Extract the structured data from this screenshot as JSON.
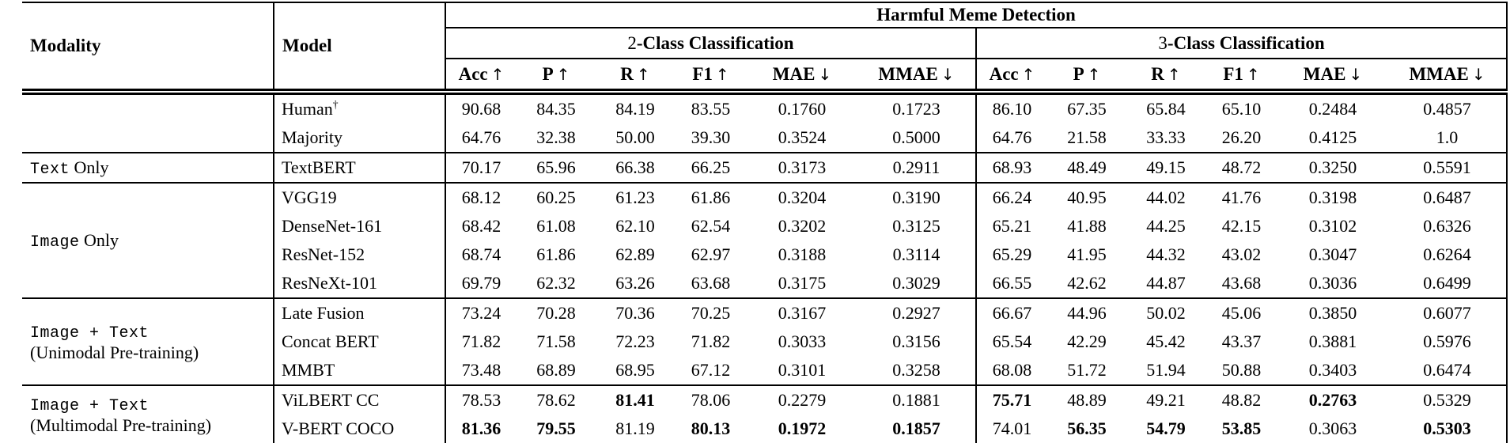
{
  "table": {
    "title": "Harmful Meme Detection",
    "col1_header": "Modality",
    "col2_header": "Model",
    "groups": [
      {
        "prefix": "2",
        "label": "-Class Classification"
      },
      {
        "prefix": "3",
        "label": "-Class Classification"
      }
    ],
    "metrics": [
      {
        "label": "Acc",
        "dir": "↑"
      },
      {
        "label": "P",
        "dir": "↑"
      },
      {
        "label": "R",
        "dir": "↑"
      },
      {
        "label": "F1",
        "dir": "↑"
      },
      {
        "label": "MAE",
        "dir": "↓"
      },
      {
        "label": "MMAE",
        "dir": "↓"
      }
    ],
    "sections": [
      {
        "modality": {
          "mono": "",
          "plain": "",
          "line2": ""
        },
        "rows": [
          {
            "model": "Human",
            "sup": "†",
            "c2": [
              "90.68",
              "84.35",
              "84.19",
              "83.55",
              "0.1760",
              "0.1723"
            ],
            "bold2": [],
            "c3": [
              "86.10",
              "67.35",
              "65.84",
              "65.10",
              "0.2484",
              "0.4857"
            ],
            "bold3": []
          },
          {
            "model": "Majority",
            "sup": "",
            "c2": [
              "64.76",
              "32.38",
              "50.00",
              "39.30",
              "0.3524",
              "0.5000"
            ],
            "bold2": [],
            "c3": [
              "64.76",
              "21.58",
              "33.33",
              "26.20",
              "0.4125",
              "1.0"
            ],
            "bold3": []
          }
        ]
      },
      {
        "modality": {
          "mono": "Text",
          "plain": " Only",
          "line2": ""
        },
        "rows": [
          {
            "model": "TextBERT",
            "sup": "",
            "c2": [
              "70.17",
              "65.96",
              "66.38",
              "66.25",
              "0.3173",
              "0.2911"
            ],
            "bold2": [],
            "c3": [
              "68.93",
              "48.49",
              "49.15",
              "48.72",
              "0.3250",
              "0.5591"
            ],
            "bold3": []
          }
        ]
      },
      {
        "modality": {
          "mono": "Image",
          "plain": " Only",
          "line2": ""
        },
        "rows": [
          {
            "model": "VGG19",
            "sup": "",
            "c2": [
              "68.12",
              "60.25",
              "61.23",
              "61.86",
              "0.3204",
              "0.3190"
            ],
            "bold2": [],
            "c3": [
              "66.24",
              "40.95",
              "44.02",
              "41.76",
              "0.3198",
              "0.6487"
            ],
            "bold3": []
          },
          {
            "model": "DenseNet-161",
            "sup": "",
            "c2": [
              "68.42",
              "61.08",
              "62.10",
              "62.54",
              "0.3202",
              "0.3125"
            ],
            "bold2": [],
            "c3": [
              "65.21",
              "41.88",
              "44.25",
              "42.15",
              "0.3102",
              "0.6326"
            ],
            "bold3": []
          },
          {
            "model": "ResNet-152",
            "sup": "",
            "c2": [
              "68.74",
              "61.86",
              "62.89",
              "62.97",
              "0.3188",
              "0.3114"
            ],
            "bold2": [],
            "c3": [
              "65.29",
              "41.95",
              "44.32",
              "43.02",
              "0.3047",
              "0.6264"
            ],
            "bold3": []
          },
          {
            "model": "ResNeXt-101",
            "sup": "",
            "c2": [
              "69.79",
              "62.32",
              "63.26",
              "63.68",
              "0.3175",
              "0.3029"
            ],
            "bold2": [],
            "c3": [
              "66.55",
              "42.62",
              "44.87",
              "43.68",
              "0.3036",
              "0.6499"
            ],
            "bold3": []
          }
        ]
      },
      {
        "modality": {
          "mono": "Image + Text",
          "plain": "",
          "line2": "(Unimodal Pre-training)"
        },
        "rows": [
          {
            "model": "Late Fusion",
            "sup": "",
            "c2": [
              "73.24",
              "70.28",
              "70.36",
              "70.25",
              "0.3167",
              "0.2927"
            ],
            "bold2": [],
            "c3": [
              "66.67",
              "44.96",
              "50.02",
              "45.06",
              "0.3850",
              "0.6077"
            ],
            "bold3": []
          },
          {
            "model": "Concat BERT",
            "sup": "",
            "c2": [
              "71.82",
              "71.58",
              "72.23",
              "71.82",
              "0.3033",
              "0.3156"
            ],
            "bold2": [],
            "c3": [
              "65.54",
              "42.29",
              "45.42",
              "43.37",
              "0.3881",
              "0.5976"
            ],
            "bold3": []
          },
          {
            "model": "MMBT",
            "sup": "",
            "c2": [
              "73.48",
              "68.89",
              "68.95",
              "67.12",
              "0.3101",
              "0.3258"
            ],
            "bold2": [],
            "c3": [
              "68.08",
              "51.72",
              "51.94",
              "50.88",
              "0.3403",
              "0.6474"
            ],
            "bold3": []
          }
        ]
      },
      {
        "modality": {
          "mono": "Image + Text",
          "plain": "",
          "line2": "(Multimodal Pre-training)"
        },
        "rows": [
          {
            "model": "ViLBERT CC",
            "sup": "",
            "c2": [
              "78.53",
              "78.62",
              "81.41",
              "78.06",
              "0.2279",
              "0.1881"
            ],
            "bold2": [
              2
            ],
            "c3": [
              "75.71",
              "48.89",
              "49.21",
              "48.82",
              "0.2763",
              "0.5329"
            ],
            "bold3": [
              0,
              4
            ]
          },
          {
            "model": "V-BERT COCO",
            "sup": "",
            "c2": [
              "81.36",
              "79.55",
              "81.19",
              "80.13",
              "0.1972",
              "0.1857"
            ],
            "bold2": [
              0,
              1,
              3,
              4,
              5
            ],
            "c3": [
              "74.01",
              "56.35",
              "54.79",
              "53.85",
              "0.3063",
              "0.5303"
            ],
            "bold3": [
              1,
              2,
              3,
              5
            ]
          }
        ]
      }
    ]
  }
}
